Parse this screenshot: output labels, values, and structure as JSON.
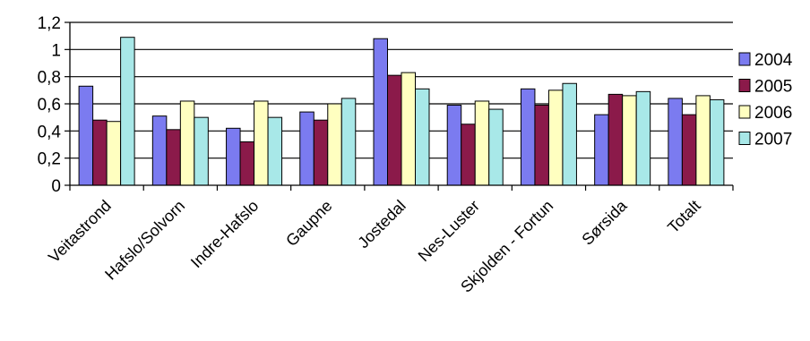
{
  "chart_data": {
    "type": "bar",
    "title": "",
    "xlabel": "",
    "ylabel": "",
    "categories": [
      "Veitastrond",
      "Hafslo/Solvorn",
      "Indre-Hafslo",
      "Gaupne",
      "Jostedal",
      "Nes-Luster",
      "Skjolden - Fortun",
      "Sørsida",
      "Totalt"
    ],
    "y_ticks": [
      "0",
      "0,2",
      "0,4",
      "0,6",
      "0,8",
      "1",
      "1,2"
    ],
    "ylim": [
      0,
      1.2
    ],
    "grid": true,
    "legend_position": "right",
    "series": [
      {
        "name": "2004",
        "color": "#7b7bf0",
        "values": [
          0.73,
          0.51,
          0.42,
          0.54,
          1.08,
          0.59,
          0.71,
          0.52,
          0.64
        ]
      },
      {
        "name": "2005",
        "color": "#8b1a4a",
        "values": [
          0.48,
          0.41,
          0.32,
          0.48,
          0.81,
          0.45,
          0.59,
          0.67,
          0.52
        ]
      },
      {
        "name": "2006",
        "color": "#ffffc0",
        "values": [
          0.47,
          0.62,
          0.62,
          0.6,
          0.83,
          0.62,
          0.7,
          0.66,
          0.66
        ]
      },
      {
        "name": "2007",
        "color": "#a8e8e8",
        "values": [
          1.09,
          0.5,
          0.5,
          0.64,
          0.71,
          0.56,
          0.75,
          0.69,
          0.63
        ]
      }
    ]
  }
}
